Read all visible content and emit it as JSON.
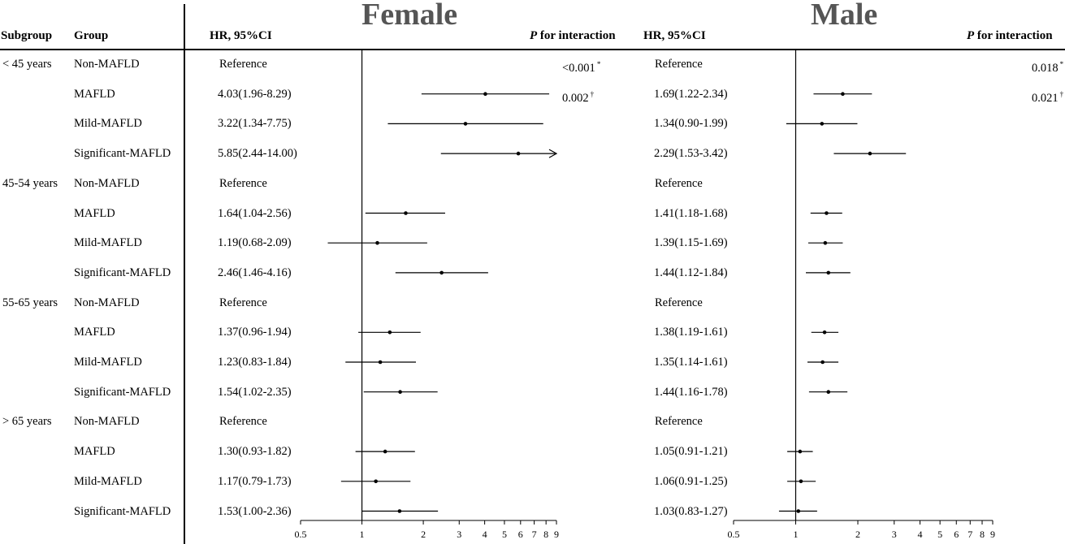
{
  "headers": {
    "subgroup": "Subgroup",
    "group": "Group",
    "hr_female": "HR, 95%CI",
    "p_prefix_female": "P",
    "p_rest_female": " for interaction",
    "hr_male": "HR, 95%CI",
    "p_prefix_male": "P",
    "p_rest_male": " for interaction"
  },
  "panel_titles": {
    "female": "Female",
    "male": "Male"
  },
  "chart_data": [
    {
      "type": "forest",
      "title": "Female",
      "x_scale": "log",
      "xlim": [
        0.5,
        9
      ],
      "x_ticks": [
        0.5,
        1,
        2,
        3,
        4,
        5,
        6,
        7,
        8,
        9
      ],
      "reference_line": 1,
      "rows": [
        {
          "subgroup": "< 45 years",
          "group": "Non-MAFLD",
          "label": "Reference",
          "hr": null,
          "lo": null,
          "hi": null,
          "p": "<0.001",
          "p_mark": "*"
        },
        {
          "subgroup": "",
          "group": "MAFLD",
          "label": "4.03(1.96-8.29)",
          "hr": 4.03,
          "lo": 1.96,
          "hi": 8.29,
          "p": "0.002",
          "p_mark": "†"
        },
        {
          "subgroup": "",
          "group": "Mild-MAFLD",
          "label": "3.22(1.34-7.75)",
          "hr": 3.22,
          "lo": 1.34,
          "hi": 7.75,
          "p": "",
          "p_mark": ""
        },
        {
          "subgroup": "",
          "group": "Significant-MAFLD",
          "label": "5.85(2.44-14.00)",
          "hr": 5.85,
          "lo": 2.44,
          "hi": 14.0,
          "p": "",
          "p_mark": ""
        },
        {
          "subgroup": "45-54 years",
          "group": "Non-MAFLD",
          "label": "Reference",
          "hr": null,
          "lo": null,
          "hi": null,
          "p": "",
          "p_mark": ""
        },
        {
          "subgroup": "",
          "group": "MAFLD",
          "label": "1.64(1.04-2.56)",
          "hr": 1.64,
          "lo": 1.04,
          "hi": 2.56,
          "p": "",
          "p_mark": ""
        },
        {
          "subgroup": "",
          "group": "Mild-MAFLD",
          "label": "1.19(0.68-2.09)",
          "hr": 1.19,
          "lo": 0.68,
          "hi": 2.09,
          "p": "",
          "p_mark": ""
        },
        {
          "subgroup": "",
          "group": "Significant-MAFLD",
          "label": "2.46(1.46-4.16)",
          "hr": 2.46,
          "lo": 1.46,
          "hi": 4.16,
          "p": "",
          "p_mark": ""
        },
        {
          "subgroup": "55-65 years",
          "group": "Non-MAFLD",
          "label": "Reference",
          "hr": null,
          "lo": null,
          "hi": null,
          "p": "",
          "p_mark": ""
        },
        {
          "subgroup": "",
          "group": "MAFLD",
          "label": "1.37(0.96-1.94)",
          "hr": 1.37,
          "lo": 0.96,
          "hi": 1.94,
          "p": "",
          "p_mark": ""
        },
        {
          "subgroup": "",
          "group": "Mild-MAFLD",
          "label": "1.23(0.83-1.84)",
          "hr": 1.23,
          "lo": 0.83,
          "hi": 1.84,
          "p": "",
          "p_mark": ""
        },
        {
          "subgroup": "",
          "group": "Significant-MAFLD",
          "label": "1.54(1.02-2.35)",
          "hr": 1.54,
          "lo": 1.02,
          "hi": 2.35,
          "p": "",
          "p_mark": ""
        },
        {
          "subgroup": "> 65 years",
          "group": "Non-MAFLD",
          "label": "Reference",
          "hr": null,
          "lo": null,
          "hi": null,
          "p": "",
          "p_mark": ""
        },
        {
          "subgroup": "",
          "group": "MAFLD",
          "label": "1.30(0.93-1.82)",
          "hr": 1.3,
          "lo": 0.93,
          "hi": 1.82,
          "p": "",
          "p_mark": ""
        },
        {
          "subgroup": "",
          "group": "Mild-MAFLD",
          "label": "1.17(0.79-1.73)",
          "hr": 1.17,
          "lo": 0.79,
          "hi": 1.73,
          "p": "",
          "p_mark": ""
        },
        {
          "subgroup": "",
          "group": "Significant-MAFLD",
          "label": "1.53(1.00-2.36)",
          "hr": 1.53,
          "lo": 1.0,
          "hi": 2.36,
          "p": "",
          "p_mark": ""
        }
      ]
    },
    {
      "type": "forest",
      "title": "Male",
      "x_scale": "log",
      "xlim": [
        0.5,
        9
      ],
      "x_ticks": [
        0.5,
        1,
        2,
        3,
        4,
        5,
        6,
        7,
        8,
        9
      ],
      "reference_line": 1,
      "rows": [
        {
          "label": "Reference",
          "hr": null,
          "lo": null,
          "hi": null,
          "p": "0.018",
          "p_mark": "*"
        },
        {
          "label": "1.69(1.22-2.34)",
          "hr": 1.69,
          "lo": 1.22,
          "hi": 2.34,
          "p": "0.021",
          "p_mark": "†"
        },
        {
          "label": "1.34(0.90-1.99)",
          "hr": 1.34,
          "lo": 0.9,
          "hi": 1.99,
          "p": "",
          "p_mark": ""
        },
        {
          "label": "2.29(1.53-3.42)",
          "hr": 2.29,
          "lo": 1.53,
          "hi": 3.42,
          "p": "",
          "p_mark": ""
        },
        {
          "label": "Reference",
          "hr": null,
          "lo": null,
          "hi": null,
          "p": "",
          "p_mark": ""
        },
        {
          "label": "1.41(1.18-1.68)",
          "hr": 1.41,
          "lo": 1.18,
          "hi": 1.68,
          "p": "",
          "p_mark": ""
        },
        {
          "label": "1.39(1.15-1.69)",
          "hr": 1.39,
          "lo": 1.15,
          "hi": 1.69,
          "p": "",
          "p_mark": ""
        },
        {
          "label": "1.44(1.12-1.84)",
          "hr": 1.44,
          "lo": 1.12,
          "hi": 1.84,
          "p": "",
          "p_mark": ""
        },
        {
          "label": "Reference",
          "hr": null,
          "lo": null,
          "hi": null,
          "p": "",
          "p_mark": ""
        },
        {
          "label": "1.38(1.19-1.61)",
          "hr": 1.38,
          "lo": 1.19,
          "hi": 1.61,
          "p": "",
          "p_mark": ""
        },
        {
          "label": "1.35(1.14-1.61)",
          "hr": 1.35,
          "lo": 1.14,
          "hi": 1.61,
          "p": "",
          "p_mark": ""
        },
        {
          "label": "1.44(1.16-1.78)",
          "hr": 1.44,
          "lo": 1.16,
          "hi": 1.78,
          "p": "",
          "p_mark": ""
        },
        {
          "label": "Reference",
          "hr": null,
          "lo": null,
          "hi": null,
          "p": "",
          "p_mark": ""
        },
        {
          "label": "1.05(0.91-1.21)",
          "hr": 1.05,
          "lo": 0.91,
          "hi": 1.21,
          "p": "",
          "p_mark": ""
        },
        {
          "label": "1.06(0.91-1.25)",
          "hr": 1.06,
          "lo": 0.91,
          "hi": 1.25,
          "p": "",
          "p_mark": ""
        },
        {
          "label": "1.03(0.83-1.27)",
          "hr": 1.03,
          "lo": 0.83,
          "hi": 1.27,
          "p": "",
          "p_mark": ""
        }
      ]
    }
  ]
}
